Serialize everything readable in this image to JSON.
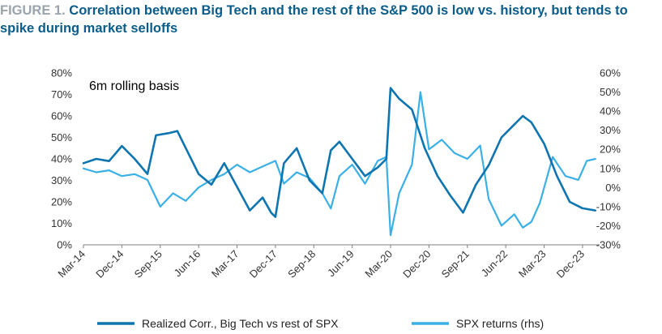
{
  "title": {
    "label": "FIGURE 1.",
    "text": "Correlation between Big Tech and the rest of the S&P 500 is low vs. history, but tends to spike during market selloffs"
  },
  "chart_data": {
    "type": "line",
    "annotation": "6m rolling basis",
    "x_tick_labels": [
      "Mar-14",
      "Dec-14",
      "Sep-15",
      "Jun-16",
      "Mar-17",
      "Dec-17",
      "Sep-18",
      "Jun-19",
      "Mar-20",
      "Dec-20",
      "Sep-21",
      "Jun-22",
      "Mar-23",
      "Dec-23"
    ],
    "x_range": [
      "2014-03",
      "2024-04"
    ],
    "y_left": {
      "ticks": [
        "0%",
        "10%",
        "20%",
        "30%",
        "40%",
        "50%",
        "60%",
        "70%",
        "80%"
      ],
      "range": [
        0,
        80
      ]
    },
    "y_right": {
      "ticks": [
        "-30%",
        "-20%",
        "-10%",
        "0%",
        "10%",
        "20%",
        "30%",
        "40%",
        "50%",
        "60%"
      ],
      "range": [
        -30,
        60
      ]
    },
    "series": [
      {
        "name": "Realized Corr., Big Tech vs rest of SPX",
        "axis": "left",
        "color": "#0e75b0",
        "points": [
          [
            "2014-03",
            38
          ],
          [
            "2014-06",
            40
          ],
          [
            "2014-09",
            39
          ],
          [
            "2014-12",
            46
          ],
          [
            "2015-03",
            40
          ],
          [
            "2015-06",
            33
          ],
          [
            "2015-08",
            51
          ],
          [
            "2015-11",
            52
          ],
          [
            "2016-01",
            53
          ],
          [
            "2016-03",
            45
          ],
          [
            "2016-06",
            33
          ],
          [
            "2016-09",
            28
          ],
          [
            "2016-12",
            38
          ],
          [
            "2017-03",
            27
          ],
          [
            "2017-06",
            16
          ],
          [
            "2017-09",
            22
          ],
          [
            "2017-11",
            15
          ],
          [
            "2017-12",
            13
          ],
          [
            "2018-02",
            38
          ],
          [
            "2018-05",
            45
          ],
          [
            "2018-08",
            30
          ],
          [
            "2018-11",
            24
          ],
          [
            "2019-01",
            44
          ],
          [
            "2019-03",
            48
          ],
          [
            "2019-06",
            40
          ],
          [
            "2019-09",
            32
          ],
          [
            "2019-12",
            36
          ],
          [
            "2020-02",
            40
          ],
          [
            "2020-03",
            73
          ],
          [
            "2020-05",
            68
          ],
          [
            "2020-08",
            63
          ],
          [
            "2020-11",
            45
          ],
          [
            "2021-02",
            32
          ],
          [
            "2021-05",
            23
          ],
          [
            "2021-08",
            15
          ],
          [
            "2021-11",
            28
          ],
          [
            "2022-02",
            37
          ],
          [
            "2022-05",
            50
          ],
          [
            "2022-08",
            56
          ],
          [
            "2022-10",
            60
          ],
          [
            "2022-12",
            57
          ],
          [
            "2023-03",
            47
          ],
          [
            "2023-06",
            32
          ],
          [
            "2023-09",
            20
          ],
          [
            "2023-12",
            17
          ],
          [
            "2024-03",
            16
          ]
        ]
      },
      {
        "name": "SPX returns (rhs)",
        "axis": "right",
        "color": "#3bb0e6",
        "points": [
          [
            "2014-03",
            10
          ],
          [
            "2014-06",
            8
          ],
          [
            "2014-09",
            9
          ],
          [
            "2014-12",
            6
          ],
          [
            "2015-03",
            7
          ],
          [
            "2015-06",
            4
          ],
          [
            "2015-09",
            -10
          ],
          [
            "2015-12",
            -3
          ],
          [
            "2016-03",
            -7
          ],
          [
            "2016-06",
            0
          ],
          [
            "2016-09",
            4
          ],
          [
            "2016-12",
            7
          ],
          [
            "2017-03",
            12
          ],
          [
            "2017-06",
            8
          ],
          [
            "2017-09",
            11
          ],
          [
            "2017-12",
            14
          ],
          [
            "2018-02",
            2
          ],
          [
            "2018-05",
            8
          ],
          [
            "2018-08",
            5
          ],
          [
            "2018-11",
            -3
          ],
          [
            "2019-01",
            -11
          ],
          [
            "2019-03",
            6
          ],
          [
            "2019-06",
            12
          ],
          [
            "2019-09",
            2
          ],
          [
            "2019-12",
            14
          ],
          [
            "2020-02",
            16
          ],
          [
            "2020-03",
            -25
          ],
          [
            "2020-05",
            -3
          ],
          [
            "2020-08",
            12
          ],
          [
            "2020-10",
            50
          ],
          [
            "2020-12",
            20
          ],
          [
            "2021-03",
            25
          ],
          [
            "2021-06",
            18
          ],
          [
            "2021-09",
            15
          ],
          [
            "2021-12",
            22
          ],
          [
            "2022-02",
            -6
          ],
          [
            "2022-05",
            -20
          ],
          [
            "2022-08",
            -14
          ],
          [
            "2022-10",
            -21
          ],
          [
            "2022-12",
            -18
          ],
          [
            "2023-02",
            -8
          ],
          [
            "2023-05",
            16
          ],
          [
            "2023-08",
            6
          ],
          [
            "2023-11",
            4
          ],
          [
            "2024-01",
            14
          ],
          [
            "2024-03",
            15
          ]
        ]
      }
    ]
  }
}
